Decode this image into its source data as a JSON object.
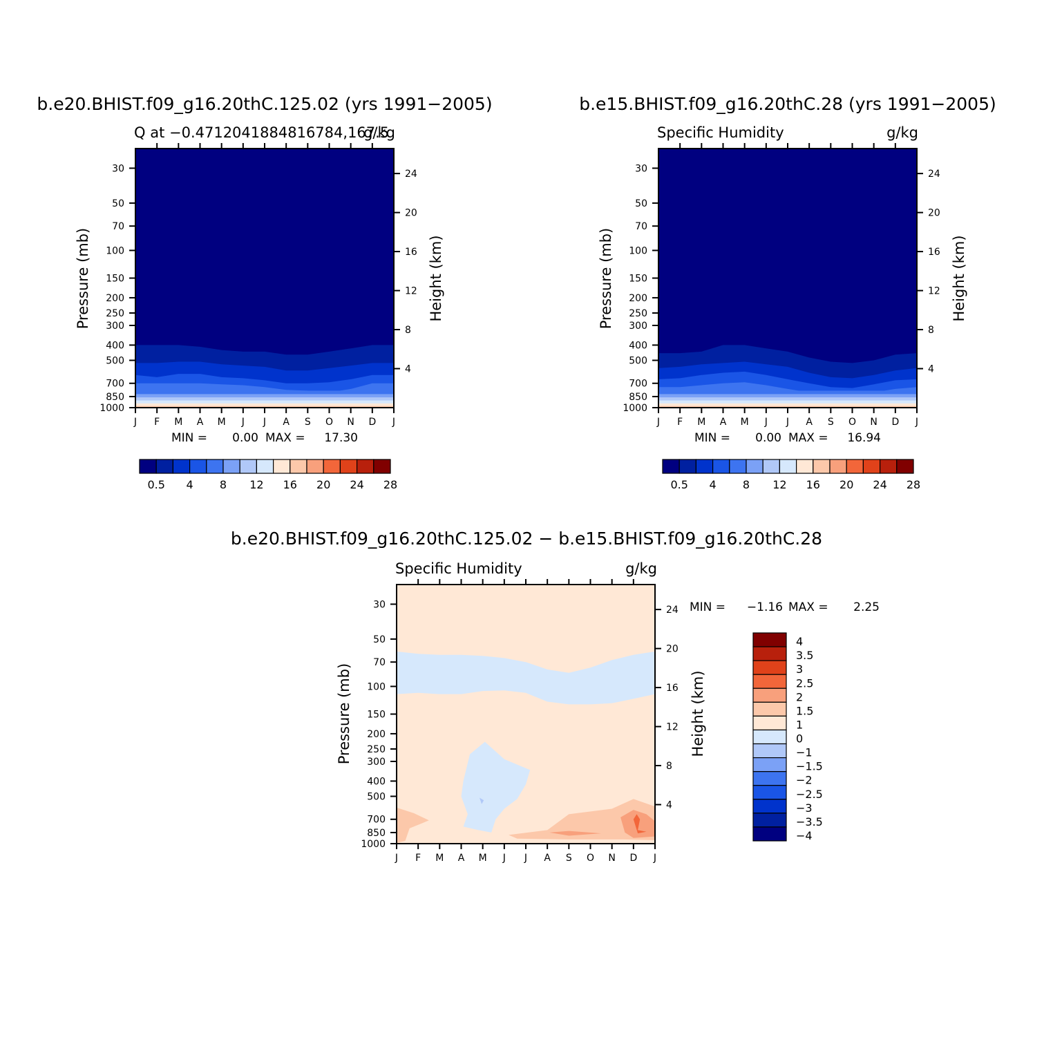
{
  "colors": {
    "background": "#ffffff",
    "axis": "#000000",
    "abs_levels": [
      "#000080",
      "#0020a0",
      "#0033cc",
      "#1a55e6",
      "#3d74f0",
      "#7ba1f6",
      "#b0c8f8",
      "#d6e8fc",
      "#ffe8d6",
      "#fcc8aa",
      "#f8a07c",
      "#f2663a",
      "#e0421a",
      "#b8200c",
      "#800000"
    ],
    "diff_levels": [
      "#000080",
      "#0020a0",
      "#0033cc",
      "#1a55e6",
      "#3d74f0",
      "#7ba1f6",
      "#b0c8f8",
      "#d6e8fc",
      "#ffe8d6",
      "#fcc8aa",
      "#f8a07c",
      "#f2663a",
      "#e0421a",
      "#b8200c",
      "#800000"
    ]
  },
  "shared": {
    "pressure_ticks": [
      "30",
      "50",
      "70",
      "100",
      "150",
      "200",
      "250",
      "300",
      "400",
      "500",
      "700",
      "850",
      "1000"
    ],
    "height_ticks": [
      "24",
      "20",
      "16",
      "12",
      "8",
      "4"
    ],
    "months": [
      "J",
      "F",
      "M",
      "A",
      "M",
      "J",
      "J",
      "A",
      "S",
      "O",
      "N",
      "D",
      "J"
    ],
    "ylabel_left": "Pressure (mb)",
    "ylabel_right": "Height (km)"
  },
  "chart_data": [
    {
      "type": "heatmap",
      "id": "panel_a",
      "title": "b.e20.BHIST.f09_g16.20thC.125.02 (yrs 1991−2005)",
      "left_label": "Q at −0.4712041884816784,167.5",
      "right_label": "g/kg",
      "ylabel": "Pressure (mb)",
      "y2label": "Height (km)",
      "min_label": "MIN =",
      "min_value": "0.00",
      "max_label": "MAX =",
      "max_value": "17.30",
      "colorbar_labels": [
        "0.5",
        "4",
        "8",
        "12",
        "16",
        "20",
        "24",
        "28"
      ],
      "contour_levels_top_pressure_mb": {
        "0.5": [
          400,
          400,
          400,
          410,
          430,
          440,
          440,
          460,
          460,
          440,
          420,
          400,
          400
        ],
        "1": [
          520,
          520,
          510,
          510,
          530,
          540,
          550,
          580,
          580,
          560,
          540,
          520,
          520
        ],
        "2": [
          620,
          640,
          610,
          610,
          640,
          650,
          670,
          700,
          700,
          690,
          660,
          620,
          620
        ],
        "4": [
          700,
          700,
          700,
          700,
          710,
          720,
          740,
          770,
          780,
          800,
          760,
          700,
          700
        ]
      }
    },
    {
      "type": "heatmap",
      "id": "panel_b",
      "title": "b.e15.BHIST.f09_g16.20thC.28 (yrs 1991−2005)",
      "left_label": "Specific Humidity",
      "right_label": "g/kg",
      "ylabel": "Pressure (mb)",
      "y2label": "Height (km)",
      "min_label": "MIN =",
      "min_value": "0.00",
      "max_label": "MAX =",
      "max_value": "16.94",
      "colorbar_labels": [
        "0.5",
        "4",
        "8",
        "12",
        "16",
        "20",
        "24",
        "28"
      ],
      "contour_levels_top_pressure_mb": {
        "0.5": [
          450,
          450,
          440,
          400,
          400,
          420,
          440,
          480,
          510,
          520,
          500,
          460,
          450
        ],
        "1": [
          560,
          550,
          530,
          520,
          510,
          530,
          550,
          600,
          640,
          650,
          620,
          580,
          560
        ],
        "2": [
          660,
          650,
          620,
          600,
          590,
          620,
          660,
          700,
          740,
          750,
          710,
          670,
          660
        ],
        "4": [
          740,
          740,
          720,
          700,
          690,
          720,
          760,
          800,
          830,
          830,
          800,
          760,
          740
        ]
      }
    },
    {
      "type": "heatmap",
      "id": "panel_diff",
      "title": "b.e20.BHIST.f09_g16.20thC.125.02 − b.e15.BHIST.f09_g16.20thC.28",
      "left_label": "Specific Humidity",
      "right_label": "g/kg",
      "ylabel": "Pressure (mb)",
      "y2label": "Height (km)",
      "min_label": "MIN =",
      "min_value": "−1.16",
      "max_label": "MAX =",
      "max_value": "2.25",
      "colorbar_labels": [
        "4",
        "3.5",
        "3",
        "2.5",
        "2",
        "1.5",
        "1",
        "0",
        "−1",
        "−1.5",
        "−2",
        "−2.5",
        "−3",
        "−3.5",
        "−4"
      ],
      "negative_band_pressure_mb": {
        "top": [
          60,
          62,
          63,
          63,
          64,
          66,
          70,
          78,
          82,
          76,
          68,
          63,
          60
        ],
        "bottom": [
          112,
          110,
          112,
          112,
          107,
          106,
          110,
          125,
          130,
          130,
          128,
          120,
          112
        ]
      }
    }
  ]
}
